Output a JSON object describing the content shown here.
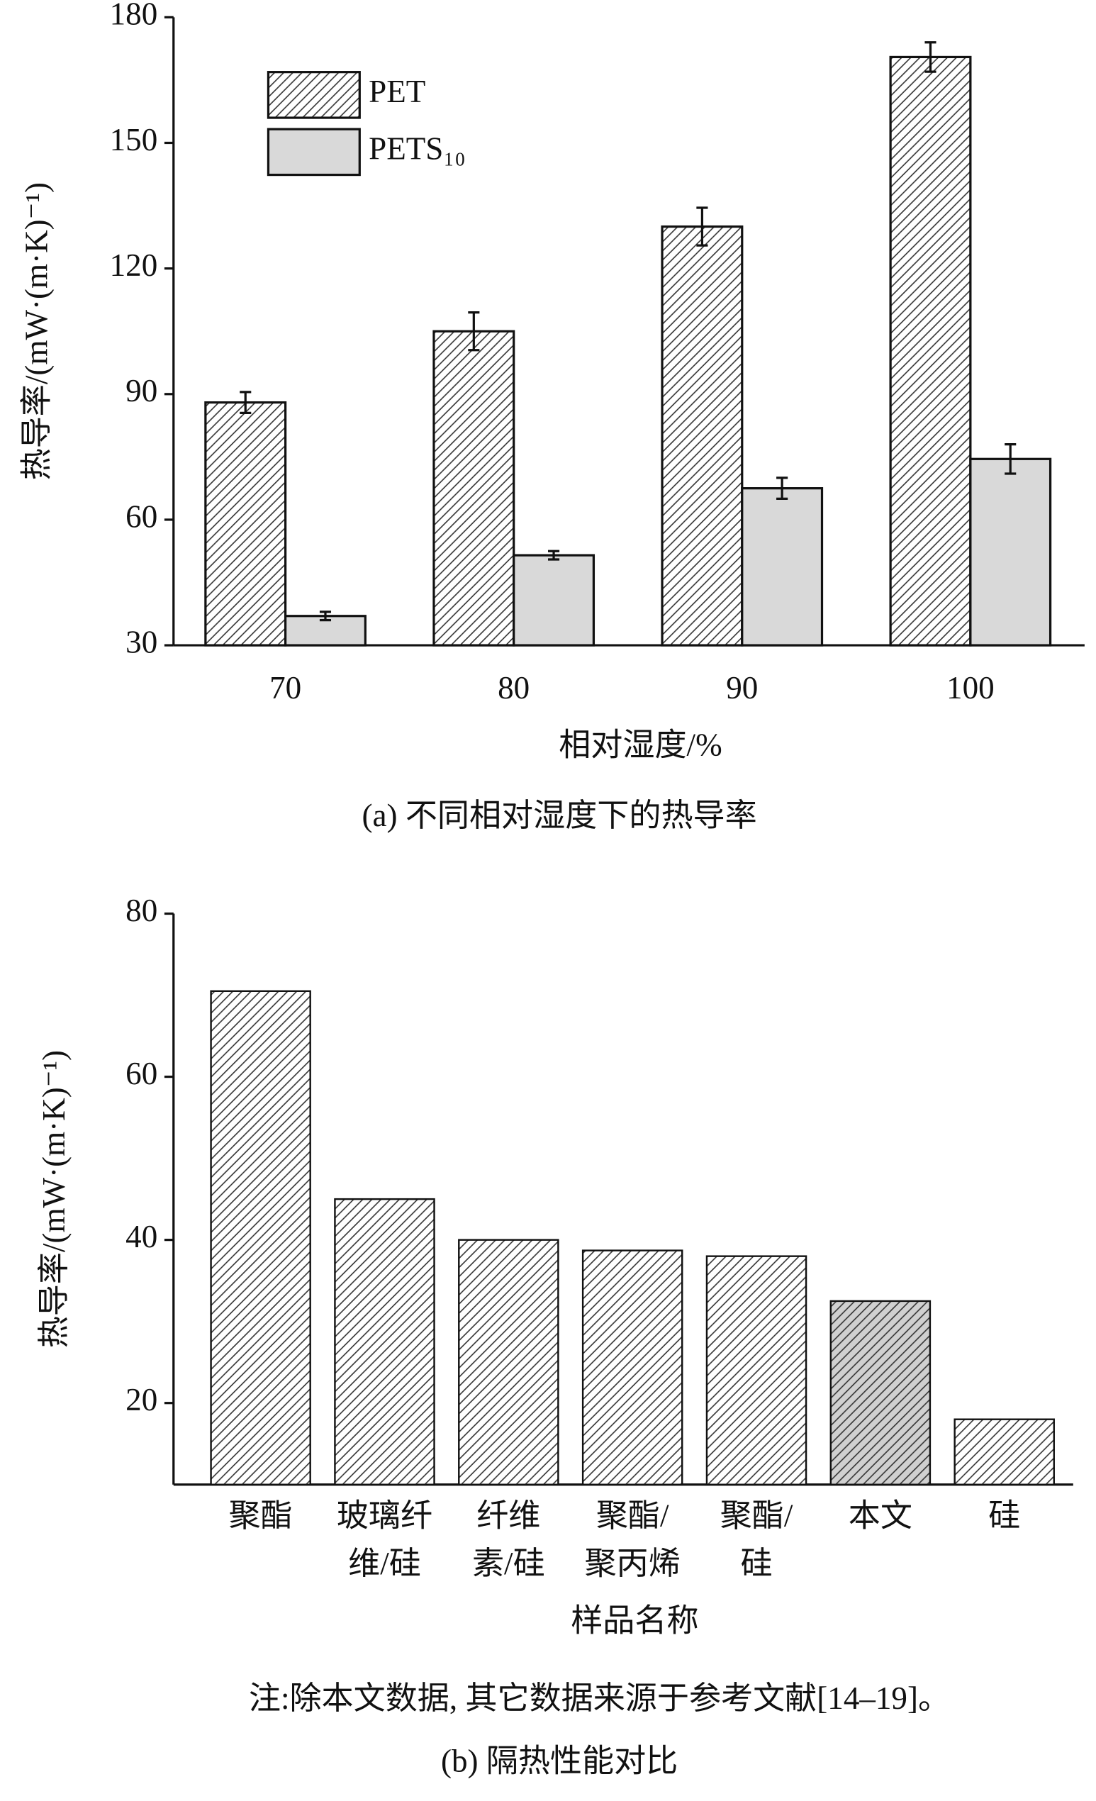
{
  "chart_data": [
    {
      "type": "bar",
      "title": "(a) 不同相对湿度下的热导率",
      "x_label": "相对湿度/%",
      "y_label": "热导率/(mW·(m·K)⁻¹)",
      "categories": [
        "70",
        "80",
        "90",
        "100"
      ],
      "series": [
        {
          "name": "PET",
          "color": "#ffffff",
          "hatch": true,
          "values": [
            88,
            105,
            130,
            170.5
          ],
          "errors": [
            2.5,
            4.5,
            4.5,
            3.5
          ]
        },
        {
          "name": "PETS₁₀",
          "color": "#d9d9d9",
          "hatch": false,
          "values": [
            37,
            51.5,
            67.5,
            74.5
          ],
          "errors": [
            1,
            1,
            2.5,
            3.5
          ]
        }
      ],
      "ylim": [
        30,
        180
      ],
      "yticks": [
        30,
        60,
        90,
        120,
        150,
        180
      ],
      "legend": "upper-left"
    },
    {
      "type": "bar",
      "title": "(b) 隔热性能对比",
      "x_label": "样品名称",
      "y_label": "热导率/(mW·(m·K)⁻¹)",
      "note": "注:除本文数据, 其它数据来源于参考文献[14–19]。",
      "categories": [
        [
          "聚酯"
        ],
        [
          "玻璃纤",
          "维/硅"
        ],
        [
          "纤维",
          "素/硅"
        ],
        [
          "聚酯/",
          "聚丙烯"
        ],
        [
          "聚酯/",
          "硅"
        ],
        [
          "本文"
        ],
        [
          "硅"
        ]
      ],
      "values": [
        70.5,
        45,
        40,
        38.7,
        38,
        32.5,
        18
      ],
      "colors": [
        "#ffffff",
        "#ffffff",
        "#ffffff",
        "#ffffff",
        "#ffffff",
        "#d0d0d0",
        "#ffffff"
      ],
      "hatch": true,
      "ylim": [
        10,
        80
      ],
      "yticks": [
        20,
        40,
        60,
        80
      ]
    }
  ]
}
